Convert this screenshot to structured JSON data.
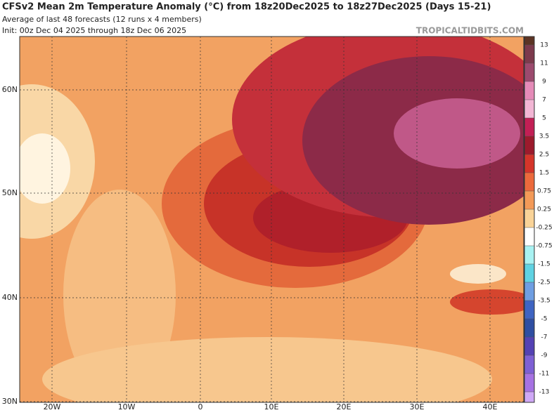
{
  "header": {
    "title": "CFSv2 Mean 2m Temperature Anomaly (°C) from 18z20Dec2025 to 18z27Dec2025 (Days 15-21)",
    "subtitle": "Average of last 48 forecasts (12 runs x 4 members)",
    "init": "Init: 00z Dec 04 2025 through 18z Dec 06 2025",
    "watermark": "TROPICALTIDBITS.COM"
  },
  "map": {
    "lat_labels": [
      "60N",
      "50N",
      "40N",
      "30N"
    ],
    "lon_labels": [
      "20W",
      "10W",
      "0",
      "10E",
      "20E",
      "30E",
      "40E"
    ]
  },
  "colorbar": {
    "ticks": [
      13,
      11,
      9,
      7,
      5,
      3.5,
      2.5,
      1.5,
      0.75,
      0.25,
      -0.25,
      -0.75,
      -1.5,
      -2.5,
      -3.5,
      -5,
      -7,
      -9,
      -11,
      -13
    ],
    "colors": [
      "#5c3424",
      "#7c3a4c",
      "#9c4a6e",
      "#e58bb8",
      "#f2b6d4",
      "#c21f55",
      "#9c1a2c",
      "#d5352a",
      "#ec6a3c",
      "#f39a58",
      "#f9d398",
      "#ffffff",
      "#a8f2f2",
      "#5fd2e2",
      "#6f9ee2",
      "#3f64c2",
      "#2f4ea2",
      "#5442b4",
      "#7e60d4",
      "#a672e2",
      "#cfa8f6"
    ]
  }
}
